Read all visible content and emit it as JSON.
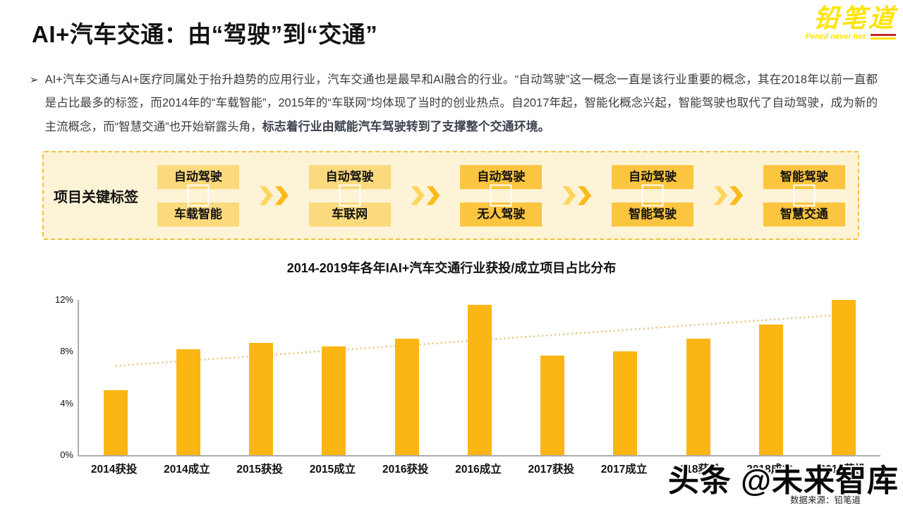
{
  "page": {
    "title": "AI+汽车交通：由“驾驶”到“交通”"
  },
  "logo": {
    "name": "铅笔道",
    "tagline": "Pencil never lies",
    "color": "#FFE400"
  },
  "paragraph": {
    "bullet": "➢",
    "text_normal": "AI+汽车交通与AI+医疗同属处于抬升趋势的应用行业，汽车交通也是最早和AI融合的行业。“自动驾驶”这一概念一直是该行业重要的概念，其在2018年以前一直都是占比最多的标签，而2014年的“车载智能”，2015年的“车联网”均体现了当时的创业热点。自2017年起，智能化概念兴起，智能驾驶也取代了自动驾驶，成为新的主流概念，而“智慧交通”也开始崭露头角，",
    "text_bold": "标志着行业由赋能汽车驾驶转到了支撑整个交通环境。"
  },
  "tag_panel": {
    "label": "项目关键标签",
    "groups": [
      {
        "top": "自动驾驶",
        "bottom": "车载智能",
        "color": "#FBDA7D"
      },
      {
        "top": "自动驾驶",
        "bottom": "车联网",
        "color": "#FBDA7D"
      },
      {
        "top": "自动驾驶",
        "bottom": "无人驾驶",
        "color": "#FCC53F"
      },
      {
        "top": "自动驾驶",
        "bottom": "智能驾驶",
        "color": "#FCC53F"
      },
      {
        "top": "智能驾驶",
        "bottom": "智慧交通",
        "color": "#FCC53F"
      }
    ]
  },
  "chart_data": {
    "type": "bar",
    "title": "2014-2019年各年IAI+汽车交通行业获投/成立项目占比分布",
    "categories": [
      "2014获投",
      "2014成立",
      "2015获投",
      "2015成立",
      "2016获投",
      "2016成立",
      "2017获投",
      "2017成立",
      "2018获投",
      "2018成立",
      "2019获投"
    ],
    "values": [
      5.0,
      8.2,
      8.7,
      8.4,
      9.0,
      11.6,
      7.7,
      8.0,
      9.0,
      10.1,
      12.0
    ],
    "xlabel": "",
    "ylabel": "",
    "ylim": [
      0,
      12
    ],
    "yticks": [
      0,
      4,
      8,
      12
    ],
    "ytick_suffix": "%",
    "grid": false,
    "legend": false,
    "bar_color": "#FBB613",
    "trendline": {
      "style": "dotted",
      "color": "#E3C27C",
      "start": 6.9,
      "end": 10.9
    }
  },
  "watermark": {
    "text": "头条 @未来智库",
    "source": "数据来源：铅笔道"
  }
}
